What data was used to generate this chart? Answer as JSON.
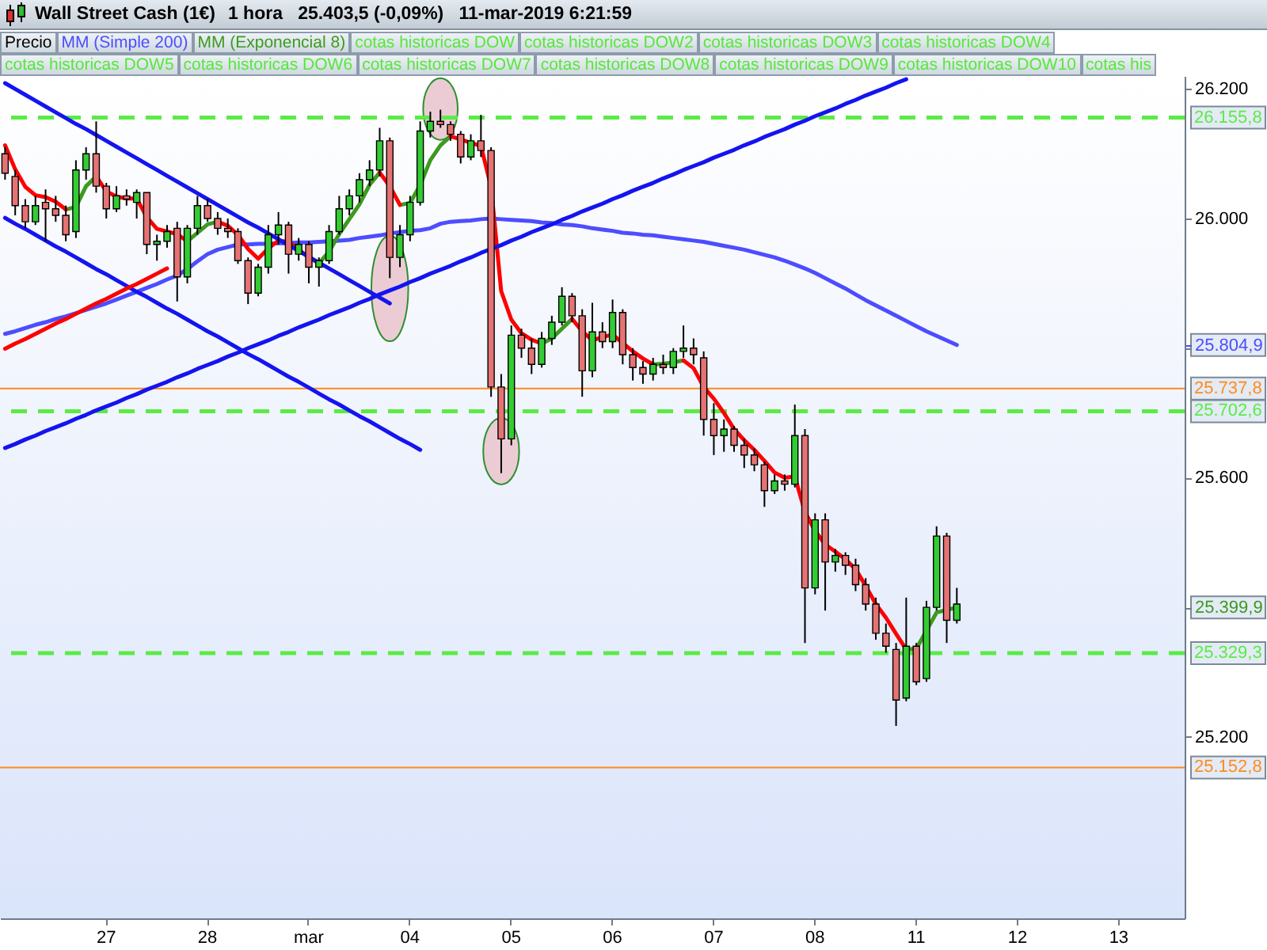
{
  "chart_data": {
    "type": "candlestick",
    "title": "Wall Street Cash (1€)",
    "subtitle": "1 hora   25.403,5 (-0,09%)   11-mar-2019 6:21:59",
    "categories": [
      null,
      null,
      null,
      null,
      null,
      null,
      null,
      null,
      null,
      null,
      "27",
      null,
      null,
      null,
      null,
      null,
      null,
      null,
      null,
      null,
      "28",
      null,
      null,
      null,
      null,
      null,
      null,
      null,
      null,
      null,
      "mar",
      null,
      null,
      null,
      null,
      null,
      null,
      null,
      null,
      null,
      "04",
      null,
      null,
      null,
      null,
      null,
      null,
      null,
      null,
      null,
      "05",
      null,
      null,
      null,
      null,
      null,
      null,
      null,
      null,
      null,
      "06",
      null,
      null,
      null,
      null,
      null,
      null,
      null,
      null,
      null,
      "07",
      null,
      null,
      null,
      null,
      null,
      null,
      null,
      null,
      null,
      "08",
      null,
      null,
      null,
      null,
      null,
      null,
      null,
      null,
      null,
      "11",
      null,
      null,
      null,
      null,
      null,
      null,
      null,
      null,
      null,
      "12",
      null,
      null,
      null,
      null,
      null,
      null,
      null,
      null,
      null,
      "13",
      null,
      null,
      null,
      null,
      null,
      null
    ],
    "ylim": [
      24920,
      26220
    ],
    "yticks": [
      {
        "value": 25200,
        "label": "25.200"
      },
      {
        "value": 25399.9,
        "label": "25.399,9"
      },
      {
        "value": 25400,
        "label": null
      },
      {
        "value": 25600,
        "label": "25.600"
      },
      {
        "value": 25800,
        "label": null
      },
      {
        "value": 25804.9,
        "label": "25.804,9"
      },
      {
        "value": 26000,
        "label": "26.000"
      },
      {
        "value": 26200,
        "label": "26.200"
      }
    ],
    "legend": "top left",
    "series": [
      {
        "name": "Precio",
        "color": "#000000",
        "ohlc": [
          [
            26100,
            26110,
            26060,
            26070
          ],
          [
            26065,
            26075,
            26005,
            26020
          ],
          [
            26020,
            26030,
            25985,
            25995
          ],
          [
            25995,
            26035,
            25990,
            26020
          ],
          [
            26025,
            26045,
            25965,
            26015
          ],
          [
            26015,
            26035,
            25995,
            26005
          ],
          [
            26005,
            26020,
            25965,
            25975
          ],
          [
            25980,
            26090,
            25970,
            26075
          ],
          [
            26075,
            26110,
            26060,
            26100
          ],
          [
            26100,
            26150,
            26040,
            26050
          ],
          [
            26050,
            26055,
            26000,
            26015
          ],
          [
            26015,
            26050,
            26010,
            26035
          ],
          [
            26035,
            26045,
            26020,
            26030
          ],
          [
            26025,
            26045,
            26000,
            26040
          ],
          [
            26040,
            26040,
            25945,
            25960
          ],
          [
            25960,
            25975,
            25935,
            25965
          ],
          [
            25965,
            25990,
            25955,
            25980
          ],
          [
            25985,
            25995,
            25872,
            25910
          ],
          [
            25910,
            25990,
            25900,
            25985
          ],
          [
            25985,
            26035,
            25975,
            26020
          ],
          [
            26020,
            26030,
            25995,
            26000
          ],
          [
            26000,
            26010,
            25975,
            25985
          ],
          [
            25985,
            26000,
            25970,
            25980
          ],
          [
            25980,
            25985,
            25930,
            25935
          ],
          [
            25935,
            25940,
            25868,
            25885
          ],
          [
            25885,
            25930,
            25880,
            25925
          ],
          [
            25925,
            25990,
            25915,
            25975
          ],
          [
            25975,
            26010,
            25960,
            25990
          ],
          [
            25990,
            25995,
            25915,
            25945
          ],
          [
            25945,
            25970,
            25935,
            25960
          ],
          [
            25960,
            25965,
            25900,
            25925
          ],
          [
            25925,
            25940,
            25895,
            25935
          ],
          [
            25935,
            25990,
            25930,
            25980
          ],
          [
            25980,
            26035,
            25975,
            26015
          ],
          [
            26015,
            26045,
            26005,
            26035
          ],
          [
            26035,
            26070,
            26025,
            26060
          ],
          [
            26060,
            26090,
            26050,
            26075
          ],
          [
            26075,
            26140,
            26065,
            26120
          ],
          [
            26120,
            26125,
            25908,
            25940
          ],
          [
            25940,
            25990,
            25925,
            25975
          ],
          [
            25975,
            26035,
            25965,
            26025
          ],
          [
            26025,
            26150,
            26020,
            26135
          ],
          [
            26135,
            26165,
            26125,
            26150
          ],
          [
            26150,
            26168,
            26140,
            26145
          ],
          [
            26145,
            26150,
            26120,
            26130
          ],
          [
            26130,
            26135,
            26085,
            26095
          ],
          [
            26095,
            26130,
            26090,
            26120
          ],
          [
            26120,
            26160,
            26095,
            26105
          ],
          [
            26105,
            26110,
            25725,
            25740
          ],
          [
            25740,
            25760,
            25607,
            25660
          ],
          [
            25660,
            25835,
            25650,
            25820
          ],
          [
            25820,
            25830,
            25785,
            25800
          ],
          [
            25800,
            25815,
            25760,
            25775
          ],
          [
            25775,
            25825,
            25770,
            25815
          ],
          [
            25815,
            25850,
            25805,
            25840
          ],
          [
            25840,
            25894,
            25835,
            25880
          ],
          [
            25880,
            25885,
            25840,
            25850
          ],
          [
            25850,
            25860,
            25725,
            25765
          ],
          [
            25765,
            25870,
            25755,
            25825
          ],
          [
            25825,
            25840,
            25800,
            25810
          ],
          [
            25810,
            25875,
            25800,
            25855
          ],
          [
            25855,
            25860,
            25775,
            25790
          ],
          [
            25790,
            25800,
            25750,
            25770
          ],
          [
            25770,
            25780,
            25745,
            25760
          ],
          [
            25760,
            25785,
            25750,
            25775
          ],
          [
            25775,
            25790,
            25760,
            25770
          ],
          [
            25770,
            25800,
            25760,
            25795
          ],
          [
            25795,
            25835,
            25785,
            25800
          ],
          [
            25800,
            25815,
            25775,
            25790
          ],
          [
            25785,
            25795,
            25665,
            25690
          ],
          [
            25690,
            25715,
            25635,
            25665
          ],
          [
            25665,
            25690,
            25640,
            25675
          ],
          [
            25675,
            25680,
            25640,
            25650
          ],
          [
            25650,
            25660,
            25615,
            25635
          ],
          [
            25635,
            25645,
            25610,
            25620
          ],
          [
            25620,
            25625,
            25555,
            25580
          ],
          [
            25580,
            25605,
            25575,
            25595
          ],
          [
            25595,
            25605,
            25580,
            25590
          ],
          [
            25590,
            25713,
            25585,
            25665
          ],
          [
            25665,
            25675,
            25345,
            25430
          ],
          [
            25430,
            25545,
            25420,
            25535
          ],
          [
            25535,
            25545,
            25395,
            25470
          ],
          [
            25470,
            25490,
            25455,
            25480
          ],
          [
            25480,
            25485,
            25450,
            25465
          ],
          [
            25465,
            25475,
            25425,
            25435
          ],
          [
            25435,
            25445,
            25395,
            25405
          ],
          [
            25405,
            25415,
            25350,
            25360
          ],
          [
            25360,
            25375,
            25330,
            25340
          ],
          [
            25335,
            25345,
            25217,
            25257
          ],
          [
            25260,
            25415,
            25255,
            25340
          ],
          [
            25340,
            25345,
            25280,
            25285
          ],
          [
            25290,
            25410,
            25285,
            25400
          ],
          [
            25400,
            25525,
            25395,
            25510
          ],
          [
            25510,
            25515,
            25345,
            25380
          ],
          [
            25380,
            25430,
            25375,
            25405
          ],
          null,
          null,
          null,
          null,
          null,
          null,
          null,
          null,
          null,
          null,
          null,
          null,
          null,
          null,
          null,
          null,
          null,
          null,
          null,
          null,
          null,
          null
        ],
        "colors": [
          "#e57373",
          "#e57373",
          "#e57373",
          "#33cc33",
          "#e57373",
          "#e57373",
          "#e57373",
          "#33cc33",
          "#33cc33",
          "#e57373",
          "#e57373",
          "#33cc33",
          "#e57373",
          "#33cc33",
          "#e57373",
          "#33cc33",
          "#33cc33",
          "#e57373",
          "#33cc33",
          "#33cc33",
          "#e57373",
          "#e57373",
          "#e57373",
          "#e57373",
          "#e57373",
          "#33cc33",
          "#33cc33",
          "#33cc33",
          "#e57373",
          "#33cc33",
          "#e57373",
          "#33cc33",
          "#33cc33",
          "#33cc33",
          "#33cc33",
          "#33cc33",
          "#33cc33",
          "#33cc33",
          "#e57373",
          "#33cc33",
          "#33cc33",
          "#33cc33",
          "#33cc33",
          "#e57373",
          "#e57373",
          "#e57373",
          "#33cc33",
          "#e57373",
          "#e57373",
          "#e57373",
          "#33cc33",
          "#e57373",
          "#e57373",
          "#33cc33",
          "#33cc33",
          "#33cc33",
          "#e57373",
          "#e57373",
          "#33cc33",
          "#e57373",
          "#33cc33",
          "#e57373",
          "#e57373",
          "#e57373",
          "#33cc33",
          "#e57373",
          "#33cc33",
          "#33cc33",
          "#e57373",
          "#e57373",
          "#e57373",
          "#33cc33",
          "#e57373",
          "#e57373",
          "#e57373",
          "#e57373",
          "#33cc33",
          "#e57373",
          "#33cc33",
          "#e57373",
          "#33cc33",
          "#e57373",
          "#33cc33",
          "#e57373",
          "#e57373",
          "#e57373",
          "#e57373",
          "#e57373",
          "#e57373",
          "#33cc33",
          "#e57373",
          "#33cc33",
          "#33cc33",
          "#e57373",
          "#33cc33",
          null,
          null,
          null,
          null,
          null,
          null,
          null,
          null,
          null,
          null,
          null,
          null,
          null,
          null,
          null,
          null,
          null,
          null,
          null,
          null,
          null,
          null
        ]
      },
      {
        "name": "MM (Simple 200)",
        "type": "line",
        "color": "#4d4dff",
        "values": [
          25822,
          25826,
          25831,
          25836,
          25840,
          25845,
          25849,
          25854,
          25859,
          25864,
          25869,
          25875,
          25881,
          25887,
          25893,
          25899,
          25906,
          25912,
          25922,
          25934,
          25945,
          25952,
          25956,
          25960,
          25960,
          25961,
          25961,
          25962,
          25962,
          25963,
          25963,
          25964,
          25965,
          25966,
          25967,
          25970,
          25972,
          25974,
          25977,
          25979,
          25981,
          25982,
          25985,
          25992,
          25995,
          25996,
          25997,
          25999,
          26000,
          25999,
          25998,
          25997,
          25996,
          25994,
          25993,
          25991,
          25990,
          25988,
          25985,
          25983,
          25981,
          25978,
          25977,
          25975,
          25974,
          25972,
          25970,
          25968,
          25966,
          25964,
          25961,
          25958,
          25955,
          25952,
          25948,
          25944,
          25940,
          25935,
          25929,
          25923,
          25916,
          25908,
          25900,
          25892,
          25883,
          25874,
          25866,
          25858,
          25850,
          25842,
          25834,
          25826,
          25819,
          25812,
          25804.9,
          null,
          null,
          null,
          null,
          null,
          null,
          null,
          null,
          null,
          null,
          null,
          null,
          null,
          null,
          null,
          null,
          null,
          null,
          null,
          null,
          null,
          null
        ]
      },
      {
        "name": "MM (Exponencial 8)",
        "type": "line",
        "color": "#3d9a1e",
        "values": [
          null,
          null,
          null,
          null,
          null,
          null,
          26014,
          26018,
          26050,
          26065,
          null,
          null,
          null,
          null,
          null,
          null,
          null,
          null,
          25965,
          25978,
          25991,
          25995,
          null,
          null,
          null,
          null,
          null,
          null,
          null,
          null,
          null,
          25931,
          25949,
          25976,
          25999,
          26022,
          26052,
          26071,
          null,
          26021,
          26024,
          26052,
          26090,
          26113,
          26127,
          null,
          null,
          null,
          null,
          null,
          null,
          null,
          null,
          25807,
          25815,
          25830,
          25845,
          null,
          null,
          null,
          null,
          null,
          null,
          null,
          25775,
          25776,
          25778,
          25781,
          null,
          null,
          null,
          null,
          null,
          null,
          null,
          null,
          null,
          null,
          null,
          null,
          null,
          null,
          null,
          null,
          null,
          null,
          null,
          null,
          null,
          25335,
          25336,
          25364,
          25392,
          25396,
          25399.9,
          null,
          null,
          null,
          null,
          null,
          null,
          null,
          null,
          null,
          null,
          null,
          null,
          null,
          null,
          null,
          null,
          null,
          null,
          null,
          null,
          null,
          null
        ]
      },
      {
        "type": "line",
        "color": "#ff0000",
        "values": [
          26113,
          26076,
          26049,
          26036,
          26033,
          26026,
          26014,
          null,
          null,
          26065,
          26042,
          26034,
          26031,
          26031,
          26002,
          25984,
          25980,
          25976,
          25965,
          null,
          null,
          25995,
          25989,
          25975,
          25953,
          25938,
          25954,
          25966,
          25964,
          25952,
          25940,
          25931,
          null,
          null,
          null,
          null,
          null,
          26071,
          26050,
          26021,
          null,
          null,
          null,
          null,
          26127,
          26122,
          26117,
          26112,
          26049,
          25888,
          25844,
          25823,
          25813,
          25807,
          null,
          null,
          25845,
          25826,
          25812,
          25817,
          25821,
          25808,
          25795,
          25784,
          25775,
          null,
          null,
          25781,
          25769,
          25740,
          25722,
          25700,
          25675,
          25658,
          25643,
          25626,
          25608,
          25600,
          25602,
          25547,
          25518,
          25497,
          25486,
          25474,
          25459,
          25433,
          25405,
          25384,
          25359,
          25335,
          null,
          null,
          null,
          null,
          null,
          null,
          null,
          null,
          null,
          null,
          null,
          null,
          null,
          null,
          null,
          null,
          null,
          null,
          null,
          null,
          null,
          null,
          null,
          null,
          null,
          null,
          null
        ]
      },
      {
        "type": "line",
        "color": "#1414f0",
        "values": [
          26209,
          26200,
          26191,
          26182,
          26173,
          26164,
          26155,
          26146,
          26138,
          26129,
          26120,
          26111,
          26102,
          26093,
          26084,
          26075,
          26066,
          26057,
          26048,
          26039,
          26030,
          26021,
          26012,
          26003,
          25994,
          25986,
          25977,
          25968,
          25959,
          25950,
          25941,
          25932,
          25923,
          25914,
          25905,
          25896,
          25887,
          25878,
          25869,
          null,
          null,
          null,
          null,
          null,
          null,
          null,
          null,
          null,
          null,
          null,
          null,
          null,
          null,
          null,
          null,
          null,
          null,
          null,
          null,
          null,
          null,
          null,
          null,
          null,
          null,
          null,
          null,
          null,
          null,
          null,
          null,
          null,
          null,
          null,
          null,
          null,
          null,
          null,
          null,
          null,
          null,
          null,
          null,
          null,
          null,
          null,
          null,
          null,
          null,
          null,
          null,
          null,
          null,
          null,
          null,
          null,
          null,
          null,
          null,
          null,
          null,
          null,
          null,
          null,
          null,
          null,
          null,
          null,
          null,
          null,
          null,
          null,
          null,
          null,
          null,
          null,
          null
        ]
      },
      {
        "type": "line",
        "color": "#1414f0",
        "values": [
          26001,
          25992,
          25984,
          25975,
          25966,
          25957,
          25949,
          25940,
          25931,
          25922,
          25914,
          25905,
          25896,
          25887,
          25879,
          25870,
          25861,
          25853,
          25844,
          25835,
          25826,
          25818,
          25809,
          25800,
          25791,
          25783,
          25774,
          25765,
          25756,
          25748,
          25739,
          25730,
          25721,
          25713,
          25704,
          25695,
          25687,
          25678,
          25669,
          25660,
          25652,
          25643,
          null,
          null,
          null,
          null,
          null,
          null,
          null,
          null,
          null,
          null,
          null,
          null,
          null,
          null,
          null,
          null,
          null,
          null,
          null,
          null,
          null,
          null,
          null,
          null,
          null,
          null,
          null,
          null,
          null,
          null,
          null,
          null,
          null,
          null,
          null,
          null,
          null,
          null,
          null,
          null,
          null,
          null,
          null,
          null,
          null,
          null,
          null,
          null,
          null,
          null,
          null,
          null,
          null,
          null,
          null,
          null,
          null,
          null,
          null,
          null,
          null,
          null,
          null,
          null,
          null,
          null,
          null,
          null,
          null,
          null,
          null,
          null,
          null,
          null,
          null
        ]
      },
      {
        "type": "line",
        "color": "#1414f0",
        "values": [
          25646,
          25652,
          25659,
          25665,
          25672,
          25678,
          25684,
          25691,
          25697,
          25704,
          25710,
          25716,
          25723,
          25729,
          25736,
          25742,
          25748,
          25755,
          25761,
          25768,
          25774,
          25780,
          25787,
          25793,
          25800,
          25806,
          25812,
          25819,
          25825,
          25832,
          25838,
          25844,
          25851,
          25857,
          25863,
          25870,
          25876,
          25883,
          25889,
          25895,
          25902,
          25908,
          25915,
          25921,
          25927,
          25934,
          25940,
          25947,
          25953,
          25959,
          25966,
          25972,
          25979,
          25985,
          25991,
          25998,
          26004,
          26011,
          26017,
          26023,
          26030,
          26036,
          26043,
          26049,
          26055,
          26062,
          26068,
          26075,
          26081,
          26087,
          26094,
          26100,
          26106,
          26113,
          26119,
          26126,
          26132,
          26138,
          26145,
          26151,
          26158,
          26164,
          26170,
          26177,
          26183,
          26190,
          26196,
          26202,
          26209,
          26215,
          null,
          null,
          null,
          null,
          null,
          null,
          null,
          null,
          null,
          null,
          null,
          null,
          null,
          null,
          null,
          null,
          null,
          null,
          null,
          null,
          null,
          null,
          null,
          null,
          null,
          null,
          null
        ]
      },
      {
        "type": "line",
        "color": "#ff0000",
        "values": [
          25799,
          25807,
          25814,
          25822,
          25830,
          25838,
          25845,
          25853,
          25861,
          25869,
          25876,
          25884,
          25892,
          25899,
          25907,
          25915,
          25923,
          null,
          null,
          null,
          null,
          null,
          null,
          null,
          null,
          null,
          null,
          null,
          null,
          null,
          null,
          null,
          null,
          null,
          null,
          null,
          null,
          null,
          null,
          null,
          null,
          null,
          null,
          null,
          null,
          null,
          null,
          null,
          null,
          null,
          null,
          null,
          null,
          null,
          null,
          null,
          null,
          null,
          null,
          null,
          null,
          null,
          null,
          null,
          null,
          null,
          null,
          null,
          null,
          null,
          null,
          null,
          null,
          null,
          null,
          null,
          null,
          null,
          null,
          null,
          null,
          null,
          null,
          null,
          null,
          null,
          null,
          null,
          null,
          null,
          null,
          null,
          null,
          null,
          null,
          null,
          null,
          null,
          null,
          null,
          null,
          null,
          null,
          null,
          null,
          null,
          null,
          null,
          null,
          null,
          null,
          null,
          null,
          null,
          null,
          null,
          null
        ]
      }
    ],
    "ref_lines": [
      {
        "axis": "y",
        "value": 26155.8,
        "label": "26.155,8",
        "color": "#5aeb46",
        "line_style": "dashed"
      },
      {
        "axis": "y",
        "value": 25737.8,
        "label": "25.737,8",
        "color": "#ff8a1e"
      },
      {
        "axis": "y",
        "value": 25702.6,
        "label": "25.702,6",
        "color": "#5aeb46",
        "line_style": "dashed"
      },
      {
        "axis": "y",
        "value": 25329.3,
        "label": "25.329,3",
        "color": "#5aeb46",
        "line_style": "dashed"
      },
      {
        "axis": "y",
        "value": 25152.8,
        "label": "25.152,8",
        "color": "#ff8a1e"
      }
    ],
    "annotations": [
      "cotas historicas DOW",
      "cotas historicas DOW2",
      "cotas historicas DOW3",
      "cotas historicas DOW4",
      "cotas historicas DOW5",
      "cotas historicas DOW6",
      "cotas historicas DOW7",
      "cotas historicas DOW8",
      "cotas historicas DOW9",
      "cotas historicas DOW10",
      "cotas his"
    ]
  }
}
